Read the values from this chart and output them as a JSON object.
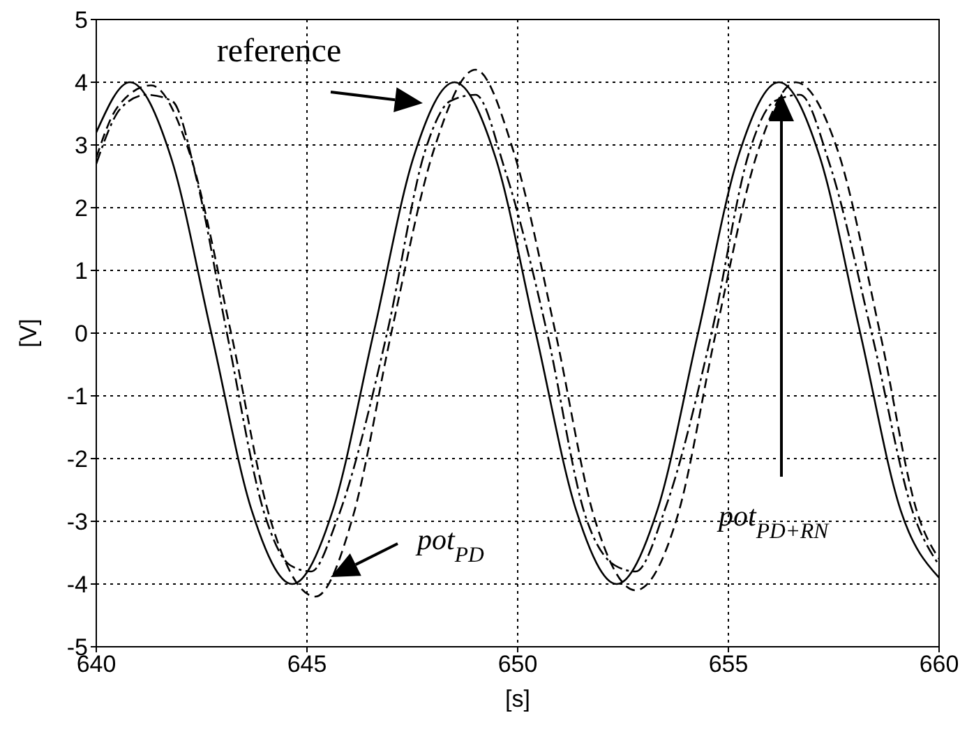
{
  "chart_data": {
    "type": "line",
    "xlabel": "[s]",
    "ylabel": "[V]",
    "xlim": [
      640,
      660
    ],
    "ylim": [
      -5,
      5
    ],
    "xticks": [
      640,
      645,
      650,
      655,
      660
    ],
    "yticks": [
      -5,
      -4,
      -3,
      -2,
      -1,
      0,
      1,
      2,
      3,
      4,
      5
    ],
    "grid": true,
    "marker": "none",
    "series": [
      {
        "color": "#000000",
        "line_style": "solid",
        "x": [
          640,
          640.8,
          641.76,
          642.73,
          643.69,
          644.65,
          645.61,
          646.58,
          647.54,
          648.5,
          649.46,
          650.43,
          651.39,
          652.35,
          653.31,
          654.28,
          655.24,
          656.2,
          657.16,
          658.13,
          659.09,
          660
        ],
        "values": [
          3.2,
          4,
          2.83,
          0,
          -2.83,
          -4,
          -2.83,
          0,
          2.83,
          4,
          2.83,
          0,
          -2.83,
          -4,
          -2.83,
          0,
          2.83,
          4,
          2.83,
          0,
          -2.83,
          -3.9
        ]
      },
      {
        "color": "#000000",
        "line_style": "dashed",
        "x": [
          640,
          640.5,
          641.3,
          642.2,
          643.2,
          644.1,
          645.2,
          646.1,
          647,
          648,
          649,
          649.9,
          650.9,
          651.8,
          652.8,
          653.8,
          654.7,
          655.7,
          656.6,
          657.6,
          658.6,
          659.5,
          660
        ],
        "values": [
          2.8,
          3.6,
          3.95,
          2.9,
          0,
          -2.9,
          -4.2,
          -2.9,
          0,
          2.9,
          4.2,
          2.9,
          0,
          -2.9,
          -4.1,
          -2.9,
          0,
          2.9,
          4,
          2.9,
          0,
          -2.9,
          -3.6
        ]
      },
      {
        "color": "#000000",
        "line_style": "dotted",
        "x": [
          640,
          640.6,
          641.2,
          641.8,
          642.4,
          643.1,
          644,
          644.6,
          645.1,
          645.7,
          646.9,
          647.8,
          648.4,
          649,
          649.7,
          650.7,
          651.6,
          652.3,
          652.8,
          653.5,
          654.6,
          655.5,
          656.1,
          656.7,
          657.4,
          658.4,
          659.4,
          660
        ],
        "values": [
          2.7,
          3.6,
          3.8,
          3.7,
          2.4,
          0,
          -2.9,
          -3.7,
          -3.8,
          -3,
          0,
          2.9,
          3.7,
          3.8,
          2.6,
          0,
          -2.9,
          -3.7,
          -3.8,
          -2.8,
          0,
          2.9,
          3.7,
          3.8,
          2.7,
          0,
          -2.9,
          -3.7
        ]
      }
    ],
    "annotations": [
      "reference",
      "pot$_{PD}$",
      "pot$_{PD+RN}$"
    ]
  }
}
